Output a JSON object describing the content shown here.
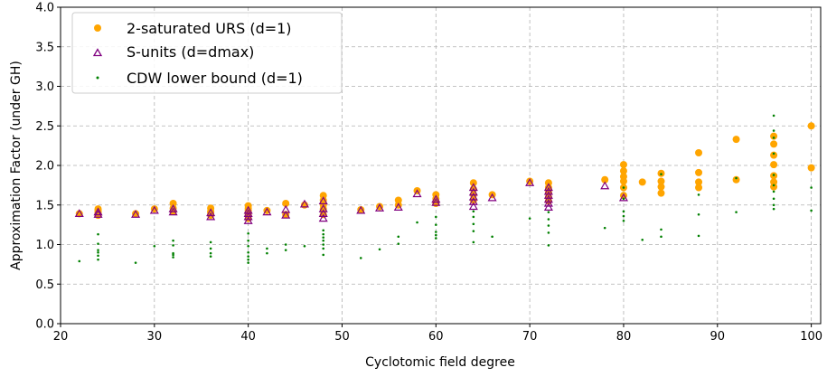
{
  "chart_data": {
    "type": "scatter",
    "xlabel": "Cyclotomic field degree",
    "ylabel": "Approximation Factor (under GH)",
    "xlim": [
      20,
      101
    ],
    "ylim": [
      0.0,
      4.0
    ],
    "x_ticks": [
      20,
      30,
      40,
      50,
      60,
      70,
      80,
      90,
      100
    ],
    "y_ticks": [
      0.0,
      0.5,
      1.0,
      1.5,
      2.0,
      2.5,
      3.0,
      3.5,
      4.0
    ],
    "x_tick_labels": [
      "20",
      "30",
      "40",
      "50",
      "60",
      "70",
      "80",
      "90",
      "100"
    ],
    "y_tick_labels": [
      "0.0",
      "0.5",
      "1.0",
      "1.5",
      "2.0",
      "2.5",
      "3.0",
      "3.5",
      "4.0"
    ],
    "grid": true,
    "legend_position": "top-left",
    "series": [
      {
        "name": "2-saturated URS (d=1)",
        "marker": "circle",
        "color": "#ffa500",
        "points": [
          [
            22,
            1.39
          ],
          [
            24,
            1.37
          ],
          [
            24,
            1.39
          ],
          [
            24,
            1.41
          ],
          [
            24,
            1.43
          ],
          [
            24,
            1.45
          ],
          [
            28,
            1.39
          ],
          [
            30,
            1.45
          ],
          [
            32,
            1.42
          ],
          [
            32,
            1.46
          ],
          [
            32,
            1.52
          ],
          [
            36,
            1.37
          ],
          [
            36,
            1.4
          ],
          [
            36,
            1.42
          ],
          [
            36,
            1.46
          ],
          [
            40,
            1.33
          ],
          [
            40,
            1.37
          ],
          [
            40,
            1.4
          ],
          [
            40,
            1.43
          ],
          [
            40,
            1.46
          ],
          [
            40,
            1.49
          ],
          [
            42,
            1.43
          ],
          [
            44,
            1.38
          ],
          [
            44,
            1.52
          ],
          [
            46,
            1.5
          ],
          [
            48,
            1.38
          ],
          [
            48,
            1.45
          ],
          [
            48,
            1.5
          ],
          [
            48,
            1.56
          ],
          [
            48,
            1.62
          ],
          [
            52,
            1.44
          ],
          [
            54,
            1.48
          ],
          [
            56,
            1.5
          ],
          [
            56,
            1.56
          ],
          [
            58,
            1.68
          ],
          [
            60,
            1.52
          ],
          [
            60,
            1.58
          ],
          [
            60,
            1.63
          ],
          [
            64,
            1.56
          ],
          [
            64,
            1.63
          ],
          [
            64,
            1.7
          ],
          [
            64,
            1.78
          ],
          [
            66,
            1.63
          ],
          [
            70,
            1.8
          ],
          [
            72,
            1.55
          ],
          [
            72,
            1.6
          ],
          [
            72,
            1.66
          ],
          [
            72,
            1.72
          ],
          [
            72,
            1.78
          ],
          [
            78,
            1.82
          ],
          [
            80,
            1.62
          ],
          [
            80,
            1.72
          ],
          [
            80,
            1.8
          ],
          [
            80,
            1.86
          ],
          [
            80,
            1.93
          ],
          [
            80,
            2.01
          ],
          [
            82,
            1.79
          ],
          [
            84,
            1.65
          ],
          [
            84,
            1.73
          ],
          [
            84,
            1.8
          ],
          [
            84,
            1.9
          ],
          [
            88,
            1.72
          ],
          [
            88,
            1.79
          ],
          [
            88,
            1.91
          ],
          [
            88,
            2.16
          ],
          [
            92,
            1.82
          ],
          [
            92,
            2.33
          ],
          [
            96,
            1.73
          ],
          [
            96,
            1.79
          ],
          [
            96,
            1.87
          ],
          [
            96,
            2.01
          ],
          [
            96,
            2.13
          ],
          [
            96,
            2.27
          ],
          [
            96,
            2.37
          ],
          [
            100,
            1.97
          ],
          [
            100,
            2.5
          ]
        ]
      },
      {
        "name": "S-units (d=dmax)",
        "marker": "triangle",
        "color": "#800080",
        "points": [
          [
            22,
            1.39
          ],
          [
            24,
            1.38
          ],
          [
            24,
            1.41
          ],
          [
            28,
            1.38
          ],
          [
            30,
            1.43
          ],
          [
            32,
            1.41
          ],
          [
            32,
            1.45
          ],
          [
            36,
            1.35
          ],
          [
            36,
            1.4
          ],
          [
            40,
            1.3
          ],
          [
            40,
            1.35
          ],
          [
            40,
            1.39
          ],
          [
            40,
            1.43
          ],
          [
            42,
            1.41
          ],
          [
            44,
            1.37
          ],
          [
            44,
            1.44
          ],
          [
            46,
            1.51
          ],
          [
            48,
            1.33
          ],
          [
            48,
            1.39
          ],
          [
            48,
            1.45
          ],
          [
            48,
            1.55
          ],
          [
            52,
            1.43
          ],
          [
            54,
            1.46
          ],
          [
            56,
            1.47
          ],
          [
            58,
            1.64
          ],
          [
            60,
            1.53
          ],
          [
            60,
            1.57
          ],
          [
            64,
            1.48
          ],
          [
            64,
            1.54
          ],
          [
            64,
            1.6
          ],
          [
            64,
            1.66
          ],
          [
            64,
            1.72
          ],
          [
            66,
            1.59
          ],
          [
            70,
            1.78
          ],
          [
            72,
            1.47
          ],
          [
            72,
            1.52
          ],
          [
            72,
            1.57
          ],
          [
            72,
            1.62
          ],
          [
            72,
            1.67
          ],
          [
            72,
            1.72
          ],
          [
            78,
            1.74
          ],
          [
            80,
            1.59
          ]
        ]
      },
      {
        "name": "CDW lower bound (d=1)",
        "marker": "dot",
        "color": "#008000",
        "points": [
          [
            22,
            0.79
          ],
          [
            24,
            0.81
          ],
          [
            24,
            0.86
          ],
          [
            24,
            0.9
          ],
          [
            24,
            0.93
          ],
          [
            24,
            1.01
          ],
          [
            24,
            1.13
          ],
          [
            28,
            0.77
          ],
          [
            30,
            0.98
          ],
          [
            32,
            0.84
          ],
          [
            32,
            0.87
          ],
          [
            32,
            0.89
          ],
          [
            32,
            0.99
          ],
          [
            32,
            1.05
          ],
          [
            36,
            0.85
          ],
          [
            36,
            0.89
          ],
          [
            36,
            0.95
          ],
          [
            36,
            1.03
          ],
          [
            40,
            0.77
          ],
          [
            40,
            0.81
          ],
          [
            40,
            0.85
          ],
          [
            40,
            0.9
          ],
          [
            40,
            0.98
          ],
          [
            40,
            1.05
          ],
          [
            40,
            1.14
          ],
          [
            42,
            0.89
          ],
          [
            42,
            0.95
          ],
          [
            44,
            0.93
          ],
          [
            44,
            1.0
          ],
          [
            46,
            0.98
          ],
          [
            48,
            0.87
          ],
          [
            48,
            0.95
          ],
          [
            48,
            1.0
          ],
          [
            48,
            1.05
          ],
          [
            48,
            1.09
          ],
          [
            48,
            1.13
          ],
          [
            48,
            1.18
          ],
          [
            52,
            0.83
          ],
          [
            54,
            0.94
          ],
          [
            56,
            1.01
          ],
          [
            56,
            1.1
          ],
          [
            58,
            1.28
          ],
          [
            60,
            1.08
          ],
          [
            60,
            1.12
          ],
          [
            60,
            1.16
          ],
          [
            60,
            1.25
          ],
          [
            60,
            1.35
          ],
          [
            64,
            1.03
          ],
          [
            64,
            1.17
          ],
          [
            64,
            1.26
          ],
          [
            64,
            1.35
          ],
          [
            64,
            1.42
          ],
          [
            66,
            1.1
          ],
          [
            70,
            1.33
          ],
          [
            72,
            0.99
          ],
          [
            72,
            1.15
          ],
          [
            72,
            1.24
          ],
          [
            72,
            1.32
          ],
          [
            72,
            1.41
          ],
          [
            78,
            1.21
          ],
          [
            80,
            1.3
          ],
          [
            80,
            1.36
          ],
          [
            80,
            1.42
          ],
          [
            80,
            1.58
          ],
          [
            80,
            1.72
          ],
          [
            82,
            1.06
          ],
          [
            84,
            1.1
          ],
          [
            84,
            1.19
          ],
          [
            84,
            1.89
          ],
          [
            88,
            1.11
          ],
          [
            88,
            1.38
          ],
          [
            88,
            1.63
          ],
          [
            92,
            1.41
          ],
          [
            92,
            1.84
          ],
          [
            96,
            1.45
          ],
          [
            96,
            1.5
          ],
          [
            96,
            1.58
          ],
          [
            96,
            1.67
          ],
          [
            96,
            1.75
          ],
          [
            96,
            1.88
          ],
          [
            96,
            2.15
          ],
          [
            96,
            2.35
          ],
          [
            96,
            2.44
          ],
          [
            96,
            2.63
          ],
          [
            100,
            1.43
          ],
          [
            100,
            1.72
          ]
        ]
      }
    ]
  }
}
